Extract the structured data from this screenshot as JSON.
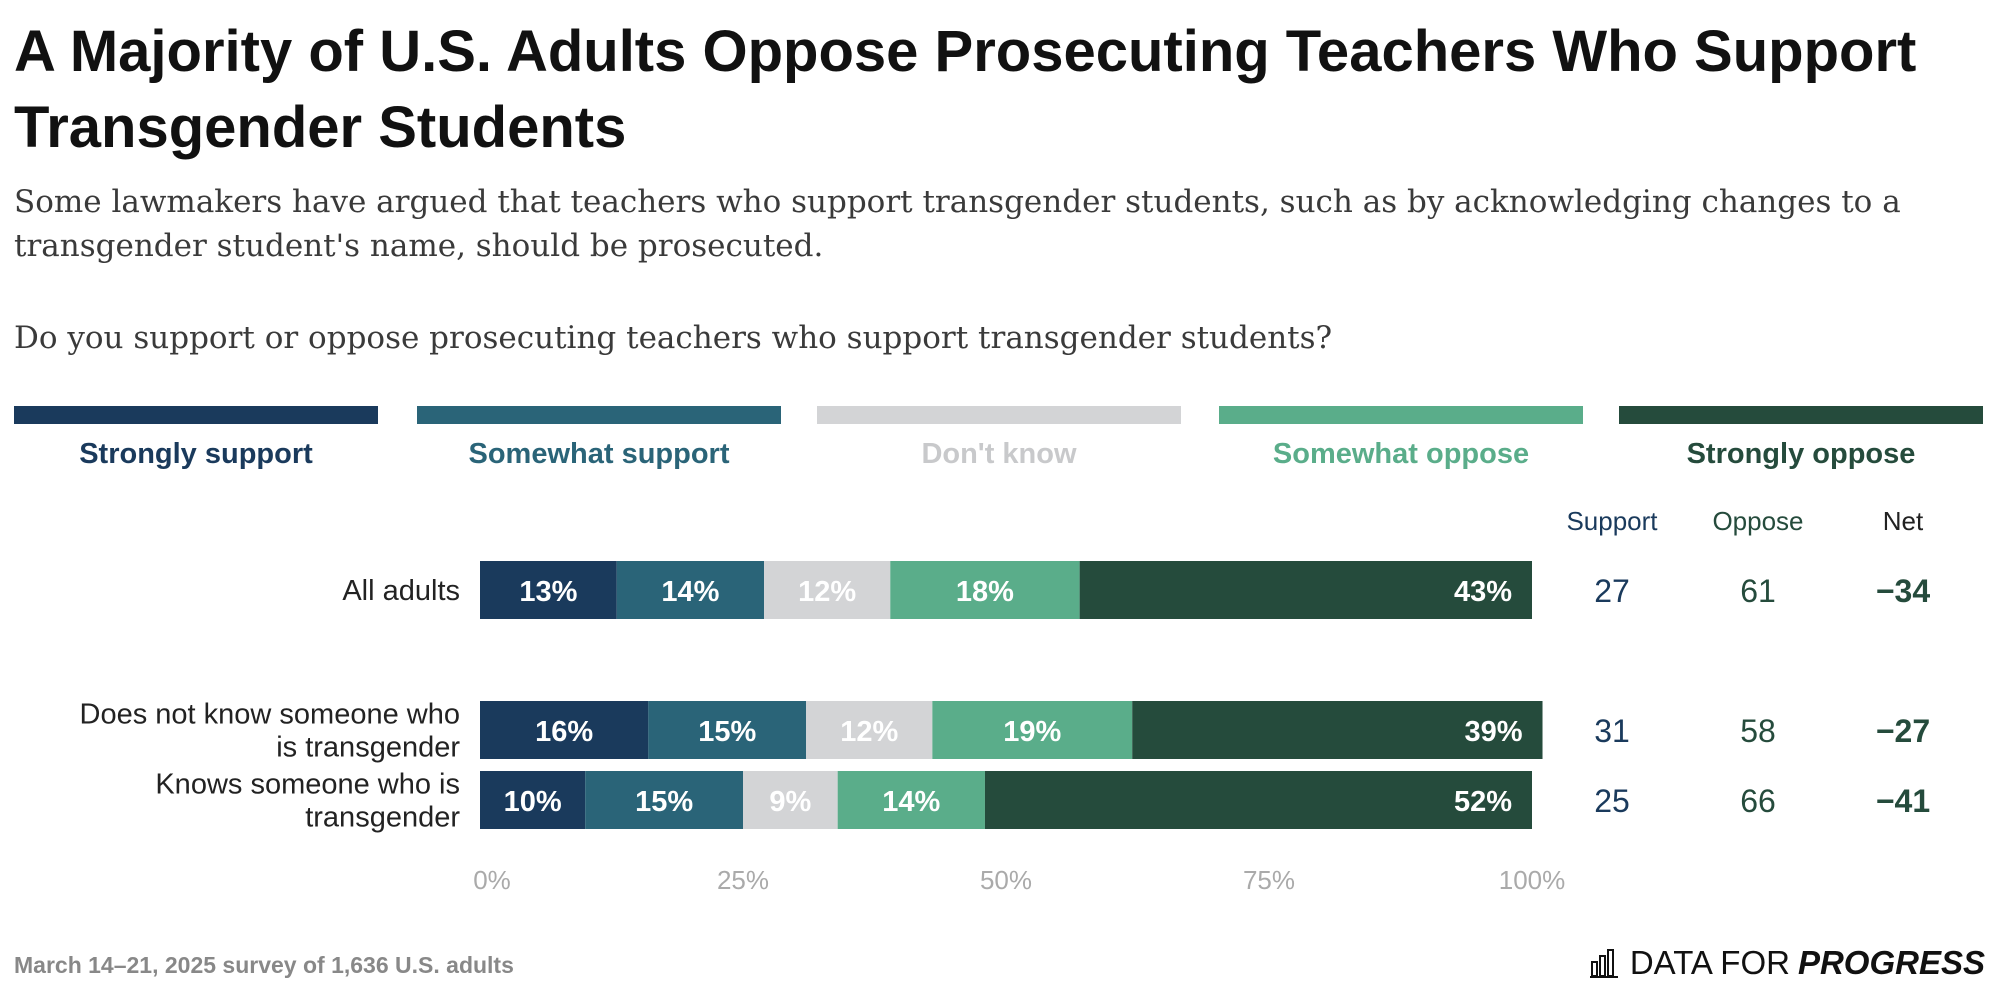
{
  "title": "A Majority of U.S. Adults Oppose Prosecuting Teachers Who Support Transgender Students",
  "subtitle": "Some lawmakers have argued that teachers who support transgender students, such as by acknowledging changes to a transgender student's name, should be prosecuted.",
  "question": "Do you support or oppose prosecuting teachers who support transgender students?",
  "footer": {
    "note": "March 14–21, 2025 survey of 1,636 U.S. adults",
    "brand_regular": "DATA FOR",
    "brand_bold": "PROGRESS"
  },
  "chart_data": {
    "type": "bar",
    "orientation": "horizontal",
    "stacked": true,
    "categories": [
      "All adults",
      "Does not know someone who is transgender",
      "Knows someone who is transgender"
    ],
    "category_lines": [
      [
        "All adults"
      ],
      [
        "Does not know someone who",
        "is transgender"
      ],
      [
        "Knows someone who is",
        "transgender"
      ]
    ],
    "series": [
      {
        "name": "Strongly support",
        "color": "#1a3a5c",
        "values": [
          13,
          16,
          10
        ],
        "labels": [
          "13%",
          "16%",
          "10%"
        ],
        "label_color": "#ffffff"
      },
      {
        "name": "Somewhat support",
        "color": "#2a6478",
        "values": [
          14,
          15,
          15
        ],
        "labels": [
          "14%",
          "15%",
          "15%"
        ],
        "label_color": "#ffffff"
      },
      {
        "name": "Don't know",
        "color": "#d3d4d6",
        "values": [
          12,
          12,
          9
        ],
        "labels": [
          "12%",
          "12%",
          "9%"
        ],
        "label_color": "#ffffff"
      },
      {
        "name": "Somewhat oppose",
        "color": "#5aad8a",
        "values": [
          18,
          19,
          14
        ],
        "labels": [
          "18%",
          "19%",
          "14%"
        ],
        "label_color": "#ffffff"
      },
      {
        "name": "Strongly oppose",
        "color": "#254b3c",
        "values": [
          43,
          39,
          52
        ],
        "labels": [
          "43%",
          "39%",
          "52%"
        ],
        "label_color": "#ffffff"
      }
    ],
    "x_ticks": [
      "0%",
      "25%",
      "50%",
      "75%",
      "100%"
    ],
    "x_tick_values": [
      0,
      25,
      50,
      75,
      100
    ],
    "xlim": [
      0,
      100
    ],
    "summary_columns": [
      {
        "header": "Support",
        "color": "#1a3a5c",
        "values": [
          "27",
          "31",
          "25"
        ],
        "bold": false
      },
      {
        "header": "Oppose",
        "color": "#254b3c",
        "values": [
          "61",
          "58",
          "66"
        ],
        "bold": false
      },
      {
        "header": "Net",
        "color": "#254b3c",
        "values": [
          "−34",
          "−27",
          "−41"
        ],
        "bold": true
      }
    ],
    "legend_label_colors": [
      "#1a3a5c",
      "#2a6478",
      "#c8c9cb",
      "#5aad8a",
      "#254b3c"
    ]
  }
}
